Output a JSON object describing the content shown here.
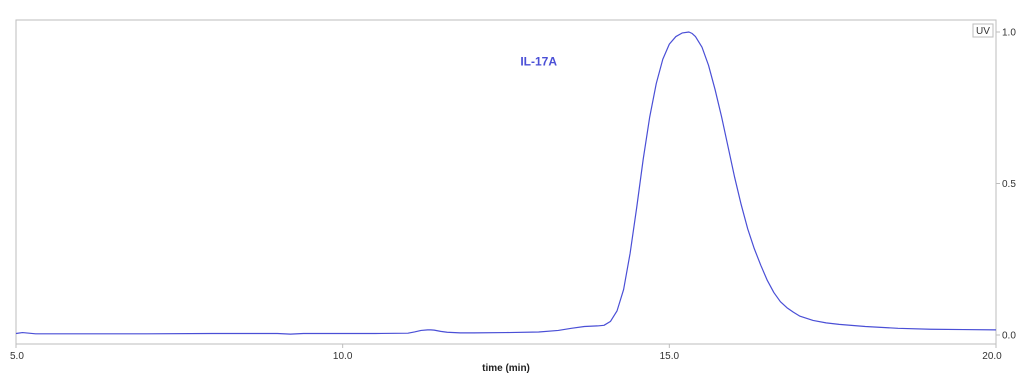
{
  "chart_data": {
    "type": "line",
    "title": "",
    "xlabel": "time (min)",
    "ylabel": "",
    "xlim": [
      5.0,
      20.0
    ],
    "ylim": [
      0.0,
      1.0
    ],
    "x_ticks": [
      "5.0",
      "10.0",
      "15.0",
      "20.0"
    ],
    "y_ticks": [
      "0.0",
      "0.5",
      "1.0"
    ],
    "y_axis_side": "right",
    "grid": false,
    "legend": {
      "label": "UV",
      "placement": "top-right"
    },
    "annotations": [
      {
        "text": "IL-17A",
        "x": 13.0,
        "y": 0.89,
        "color": "#4a4fd6"
      }
    ],
    "colors": {
      "line": "#4a4fd6",
      "frame": "#bdbdbd",
      "axis_text": "#333333"
    },
    "series": [
      {
        "name": "IL-17A",
        "x": [
          5.0,
          5.1,
          5.3,
          6.0,
          7.0,
          8.0,
          9.0,
          9.2,
          9.4,
          10.0,
          10.5,
          11.0,
          11.1,
          11.2,
          11.3,
          11.35,
          11.4,
          11.5,
          11.6,
          11.8,
          12.0,
          12.5,
          13.0,
          13.3,
          13.5,
          13.7,
          13.9,
          14.0,
          14.1,
          14.2,
          14.3,
          14.4,
          14.5,
          14.6,
          14.7,
          14.8,
          14.9,
          15.0,
          15.1,
          15.2,
          15.3,
          15.35,
          15.4,
          15.5,
          15.6,
          15.7,
          15.8,
          15.9,
          16.0,
          16.1,
          16.2,
          16.3,
          16.4,
          16.5,
          16.6,
          16.7,
          16.8,
          16.9,
          17.0,
          17.2,
          17.4,
          17.6,
          18.0,
          18.5,
          19.0,
          19.5,
          20.0
        ],
        "values": [
          0.005,
          0.008,
          0.004,
          0.004,
          0.004,
          0.005,
          0.005,
          0.003,
          0.005,
          0.005,
          0.005,
          0.006,
          0.01,
          0.015,
          0.017,
          0.017,
          0.016,
          0.012,
          0.009,
          0.007,
          0.007,
          0.008,
          0.01,
          0.015,
          0.022,
          0.028,
          0.03,
          0.032,
          0.045,
          0.08,
          0.15,
          0.27,
          0.42,
          0.58,
          0.72,
          0.83,
          0.91,
          0.96,
          0.985,
          0.997,
          1.0,
          0.995,
          0.985,
          0.95,
          0.89,
          0.81,
          0.72,
          0.62,
          0.52,
          0.43,
          0.35,
          0.285,
          0.23,
          0.18,
          0.14,
          0.11,
          0.09,
          0.075,
          0.062,
          0.048,
          0.04,
          0.035,
          0.028,
          0.022,
          0.019,
          0.018,
          0.017
        ]
      }
    ]
  }
}
